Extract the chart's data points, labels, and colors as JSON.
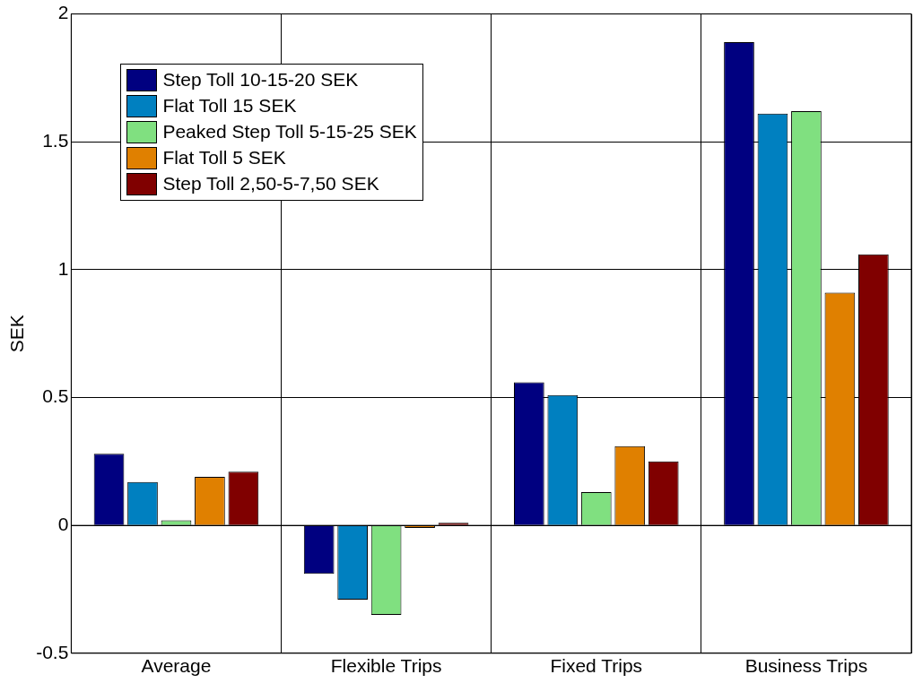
{
  "chart_data": {
    "type": "bar",
    "ylabel": "SEK",
    "categories": [
      "Average",
      "Flexible Trips",
      "Fixed Trips",
      "Business Trips"
    ],
    "series": [
      {
        "name": "Step Toll 10-15-20 SEK",
        "color": "#000080",
        "values": [
          0.28,
          -0.19,
          0.56,
          1.89
        ]
      },
      {
        "name": "Flat Toll 15 SEK",
        "color": "#0080c0",
        "values": [
          0.17,
          -0.29,
          0.51,
          1.61
        ]
      },
      {
        "name": "Peaked Step Toll 5-15-25 SEK",
        "color": "#80e080",
        "values": [
          0.02,
          -0.35,
          0.13,
          1.62
        ]
      },
      {
        "name": "Flat Toll 5 SEK",
        "color": "#e08000",
        "values": [
          0.19,
          -0.01,
          0.31,
          0.91
        ]
      },
      {
        "name": "Step Toll 2,50-5-7,50 SEK",
        "color": "#800000",
        "values": [
          0.21,
          0.01,
          0.25,
          1.06
        ]
      }
    ],
    "ylim": [
      -0.5,
      2
    ],
    "yticks": [
      -0.5,
      0,
      0.5,
      1,
      1.5,
      2
    ],
    "grid": true,
    "legend": "top left"
  }
}
